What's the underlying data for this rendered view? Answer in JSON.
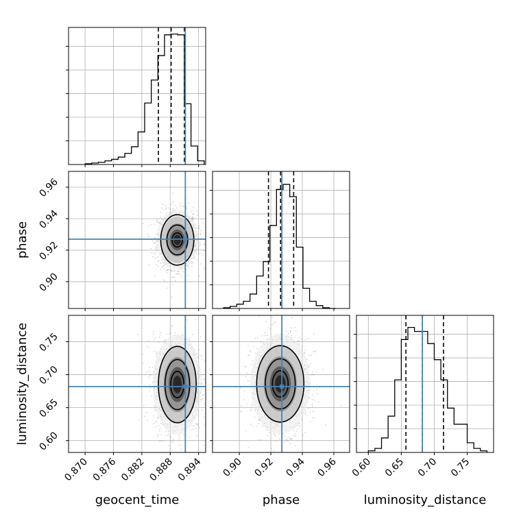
{
  "chart_data": {
    "type": "corner",
    "parameters": [
      "geocent_time",
      "phase",
      "luminosity_distance"
    ],
    "grid": true,
    "truth_color": "#4682b4",
    "hist_color": "#000000",
    "quantile_style": "dashed",
    "axis_labels": {
      "x": [
        "geocent_time",
        "phase",
        "luminosity_distance"
      ],
      "y_row1": "phase",
      "y_row2": "luminosity_distance"
    },
    "axes": {
      "geocent_time": {
        "range": [
          0.8665,
          0.8955
        ],
        "tick_values": [
          0.87,
          0.876,
          0.882,
          0.888,
          0.894
        ],
        "tick_labels": [
          "0.870",
          "0.876",
          "0.882",
          "0.888",
          "0.894"
        ]
      },
      "phase": {
        "range": [
          0.883,
          0.97
        ],
        "tick_values": [
          0.9,
          0.92,
          0.94,
          0.96
        ],
        "tick_labels": [
          "0.90",
          "0.92",
          "0.94",
          "0.96"
        ]
      },
      "luminosity_distance": {
        "range": [
          0.582,
          0.79
        ],
        "tick_values": [
          0.6,
          0.65,
          0.7,
          0.75
        ],
        "tick_labels": [
          "0.60",
          "0.65",
          "0.70",
          "0.75"
        ]
      }
    },
    "truths": {
      "geocent_time": 0.8912,
      "phase": 0.927,
      "luminosity_distance": 0.682
    },
    "quantiles": {
      "geocent_time": [
        0.8855,
        0.8882,
        0.891
      ],
      "phase": [
        0.9185,
        0.9262,
        0.9345
      ],
      "luminosity_distance": [
        0.657,
        0.682,
        0.714
      ]
    },
    "histograms": {
      "geocent_time": {
        "bins": [
          0.87,
          0.8714,
          0.8728,
          0.8742,
          0.8756,
          0.877,
          0.8784,
          0.8798,
          0.8812,
          0.8826,
          0.884,
          0.8854,
          0.8868,
          0.8882,
          0.8896,
          0.891,
          0.8924,
          0.8938,
          0.8952
        ],
        "counts": [
          1,
          2,
          3,
          5,
          7,
          10,
          15,
          24,
          44,
          83,
          114,
          147,
          175,
          176,
          175,
          82,
          25,
          5
        ],
        "ymax": 185
      },
      "phase": {
        "bins": [
          0.89,
          0.8942,
          0.8984,
          0.9026,
          0.9068,
          0.911,
          0.9152,
          0.9194,
          0.9236,
          0.9278,
          0.932,
          0.9362,
          0.9404,
          0.9446,
          0.9488,
          0.953,
          0.9572,
          0.9614
        ],
        "counts": [
          1,
          3,
          6,
          10,
          20,
          45,
          65,
          115,
          165,
          172,
          155,
          85,
          28,
          10,
          4,
          1,
          0
        ],
        "ymax": 190
      },
      "luminosity_distance": {
        "bins": [
          0.6,
          0.61,
          0.62,
          0.63,
          0.64,
          0.65,
          0.66,
          0.67,
          0.68,
          0.69,
          0.7,
          0.71,
          0.72,
          0.73,
          0.74,
          0.75,
          0.76,
          0.77,
          0.78
        ],
        "counts": [
          2,
          5,
          18,
          45,
          90,
          140,
          155,
          150,
          150,
          135,
          115,
          90,
          55,
          35,
          35,
          12,
          5,
          2
        ],
        "ymax": 170
      }
    },
    "density_2d": [
      {
        "x": "geocent_time",
        "y": "phase",
        "center": [
          0.8895,
          0.9265
        ],
        "contour_half_widths": [
          [
            0.0011,
            0.0045
          ],
          [
            0.0022,
            0.0095
          ],
          [
            0.0035,
            0.016
          ]
        ]
      },
      {
        "x": "geocent_time",
        "y": "luminosity_distance",
        "center": [
          0.8895,
          0.685
        ],
        "contour_half_widths": [
          [
            0.0014,
            0.02
          ],
          [
            0.0026,
            0.038
          ],
          [
            0.004,
            0.058
          ]
        ]
      },
      {
        "x": "phase",
        "y": "luminosity_distance",
        "center": [
          0.926,
          0.686
        ],
        "contour_half_widths": [
          [
            0.005,
            0.02
          ],
          [
            0.0095,
            0.038
          ],
          [
            0.015,
            0.058
          ]
        ]
      }
    ]
  }
}
